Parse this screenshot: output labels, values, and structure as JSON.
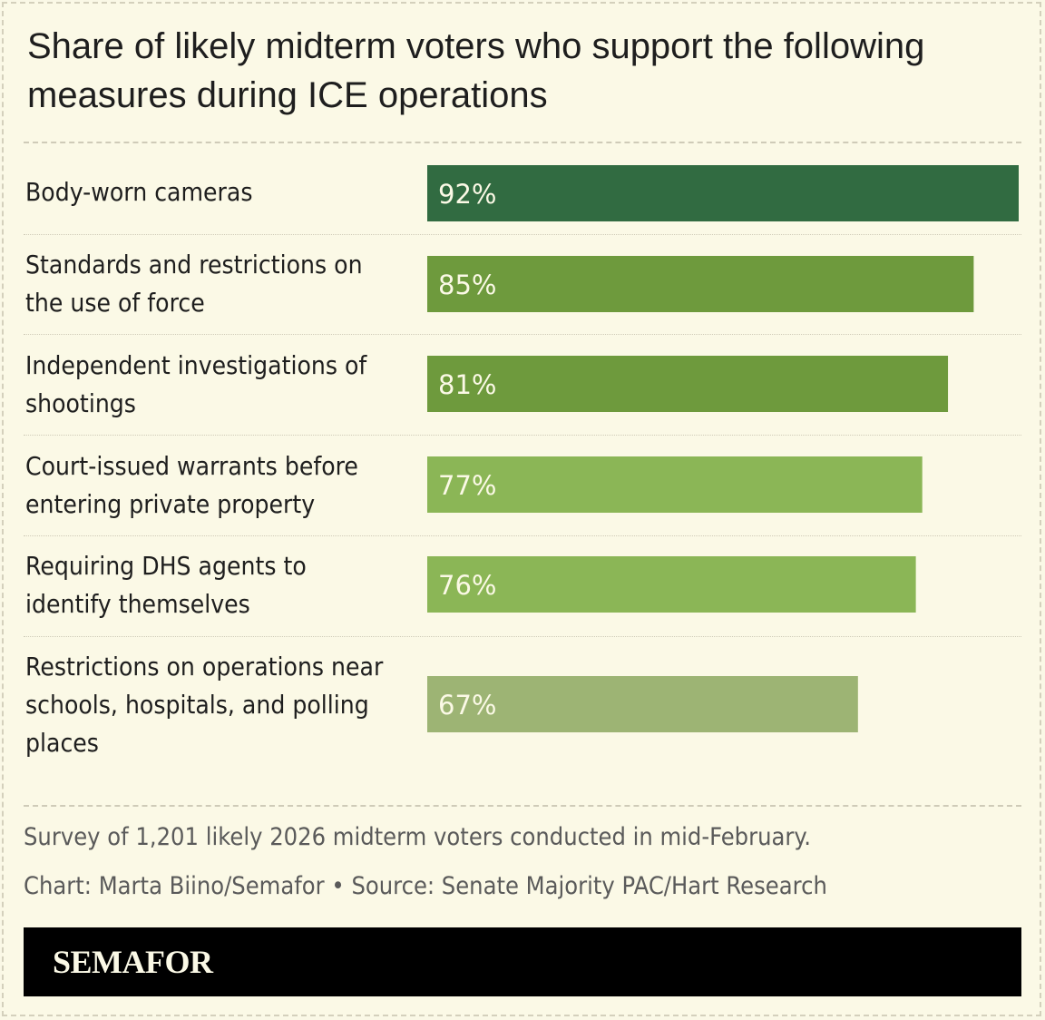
{
  "chart_data": {
    "type": "bar",
    "orientation": "horizontal",
    "title": "Share of likely midterm voters who support the following measures during ICE operations",
    "categories": [
      "Body-worn cameras",
      "Standards and restrictions on the use of force",
      "Independent investigations of shootings",
      "Court-issued warrants before entering private property",
      "Requiring DHS agents to identify themselves",
      "Restrictions on operations near schools, hospitals, and polling places"
    ],
    "values": [
      92,
      85,
      81,
      77,
      76,
      67
    ],
    "value_labels": [
      "92%",
      "85%",
      "81%",
      "77%",
      "76%",
      "67%"
    ],
    "bar_colors": [
      "#316b41",
      "#6e9a3d",
      "#6e9a3d",
      "#8bb656",
      "#8bb656",
      "#9db474"
    ],
    "xlim": [
      0,
      92
    ],
    "grid": false,
    "legend": "none",
    "note": "Survey of 1,201 likely 2026 midterm voters conducted in mid-February.",
    "credit": "Chart: Marta Biino/Semafor • Source: Senate Majority PAC/Hart Research"
  },
  "brand": "SEMAFOR",
  "colors": {
    "background": "#fbf9e6",
    "label_text": "#fbf9e6"
  }
}
